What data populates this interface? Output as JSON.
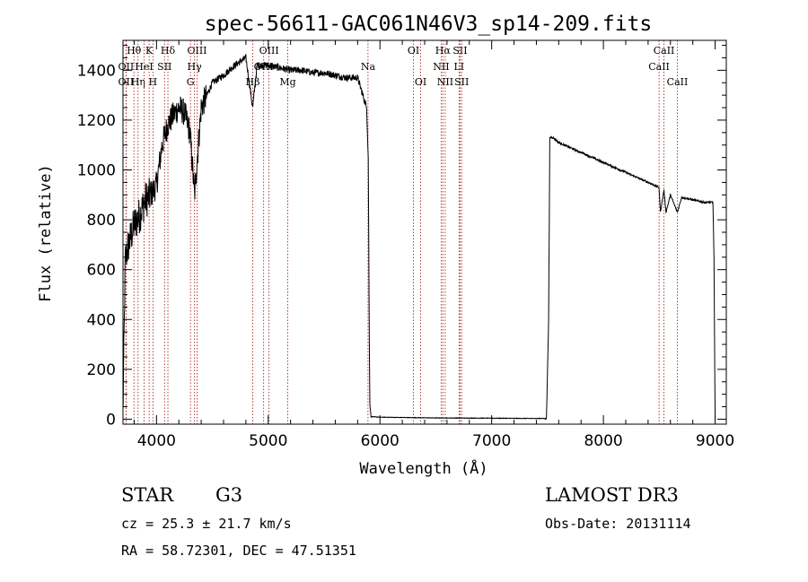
{
  "chart_data": {
    "type": "line",
    "title": "spec-56611-GAC061N46V3_sp14-209.fits",
    "xlabel": "Wavelength (Å)",
    "ylabel": "Flux (relative)",
    "xlim": [
      3700,
      9100
    ],
    "ylim": [
      -20,
      1520
    ],
    "xticks": [
      4000,
      5000,
      6000,
      7000,
      8000,
      9000
    ],
    "yticks": [
      0,
      200,
      400,
      600,
      800,
      1000,
      1200,
      1400
    ],
    "spectrum_anchor_points": {
      "x": [
        3700,
        3720,
        3750,
        3800,
        3850,
        3900,
        3950,
        4000,
        4050,
        4100,
        4150,
        4200,
        4250,
        4300,
        4340,
        4400,
        4500,
        4600,
        4700,
        4800,
        4861,
        4900,
        5000,
        5100,
        5200,
        5300,
        5400,
        5500,
        5600,
        5700,
        5800,
        5880,
        5895,
        5905,
        5910,
        5920,
        6000,
        6500,
        7000,
        7300,
        7490,
        7510,
        7520,
        7550,
        7600,
        7700,
        7800,
        7900,
        8000,
        8100,
        8200,
        8300,
        8400,
        8498,
        8510,
        8542,
        8560,
        8600,
        8662,
        8700,
        8800,
        8900,
        8980,
        8990,
        9000
      ],
      "y": [
        20,
        640,
        700,
        780,
        820,
        880,
        900,
        940,
        1100,
        1180,
        1220,
        1250,
        1230,
        1150,
        900,
        1250,
        1350,
        1380,
        1420,
        1450,
        1250,
        1420,
        1420,
        1410,
        1400,
        1400,
        1390,
        1390,
        1380,
        1370,
        1370,
        1250,
        1050,
        300,
        60,
        10,
        8,
        5,
        4,
        3,
        3,
        400,
        1130,
        1130,
        1110,
        1090,
        1070,
        1050,
        1030,
        1010,
        990,
        970,
        950,
        930,
        830,
        920,
        830,
        900,
        830,
        890,
        880,
        870,
        870,
        650,
        0
      ]
    },
    "spectral_lines": [
      {
        "label": "Hθ",
        "wl": 3798,
        "row": 0
      },
      {
        "label": "OII",
        "wl": 3727,
        "row": 1
      },
      {
        "label": "OII",
        "wl": 3727,
        "row": 2
      },
      {
        "label": "Hη",
        "wl": 3835,
        "row": 2
      },
      {
        "label": "K",
        "wl": 3934,
        "row": 0
      },
      {
        "label": "HeI",
        "wl": 3889,
        "row": 1
      },
      {
        "label": "SII",
        "wl": 4072,
        "row": 1
      },
      {
        "label": "H",
        "wl": 3968,
        "row": 2
      },
      {
        "label": "Hδ",
        "wl": 4102,
        "row": 0
      },
      {
        "label": "OIII",
        "wl": 4363,
        "row": 0
      },
      {
        "label": "Hγ",
        "wl": 4340,
        "row": 1
      },
      {
        "label": "G",
        "wl": 4304,
        "row": 2
      },
      {
        "label": "Hβ",
        "wl": 4861,
        "row": 2
      },
      {
        "label": "OIII",
        "wl": 5007,
        "row": 0
      },
      {
        "label": "OIII",
        "wl": 4959,
        "row": 1
      },
      {
        "label": "Mg",
        "wl": 5175,
        "row": 2
      },
      {
        "label": "Na",
        "wl": 5893,
        "row": 1
      },
      {
        "label": "OI",
        "wl": 6300,
        "row": 0
      },
      {
        "label": "OI",
        "wl": 6364,
        "row": 2
      },
      {
        "label": "Hα",
        "wl": 6563,
        "row": 0
      },
      {
        "label": "SII",
        "wl": 6717,
        "row": 0
      },
      {
        "label": "NII",
        "wl": 6548,
        "row": 1
      },
      {
        "label": "LI",
        "wl": 6708,
        "row": 1
      },
      {
        "label": "NII",
        "wl": 6584,
        "row": 2
      },
      {
        "label": "SII",
        "wl": 6731,
        "row": 2
      },
      {
        "label": "CaII",
        "wl": 8542,
        "row": 0
      },
      {
        "label": "CaII",
        "wl": 8498,
        "row": 1
      },
      {
        "label": "CaII",
        "wl": 8662,
        "row": 2
      }
    ]
  },
  "info": {
    "object_type": "STAR",
    "subclass": "G3",
    "cz": "cz = 25.3 ± 21.7 km/s",
    "radec": "RA =  58.72301, DEC =  47.51351",
    "survey": "LAMOST DR3",
    "obs_date": "Obs-Date: 20131114"
  }
}
